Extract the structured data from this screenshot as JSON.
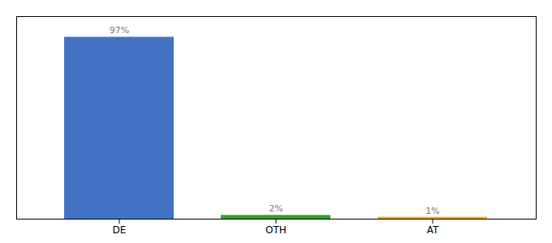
{
  "chart_data": {
    "type": "bar",
    "categories": [
      "DE",
      "OTH",
      "AT"
    ],
    "values": [
      97,
      2,
      1
    ],
    "value_labels": [
      "97%",
      "2%",
      "1%"
    ],
    "colors": [
      "#4472c4",
      "#33a02c",
      "#f5a623"
    ],
    "ylim": [
      0,
      108
    ],
    "data_labels": true,
    "tick_labels": "x",
    "grid": false
  }
}
